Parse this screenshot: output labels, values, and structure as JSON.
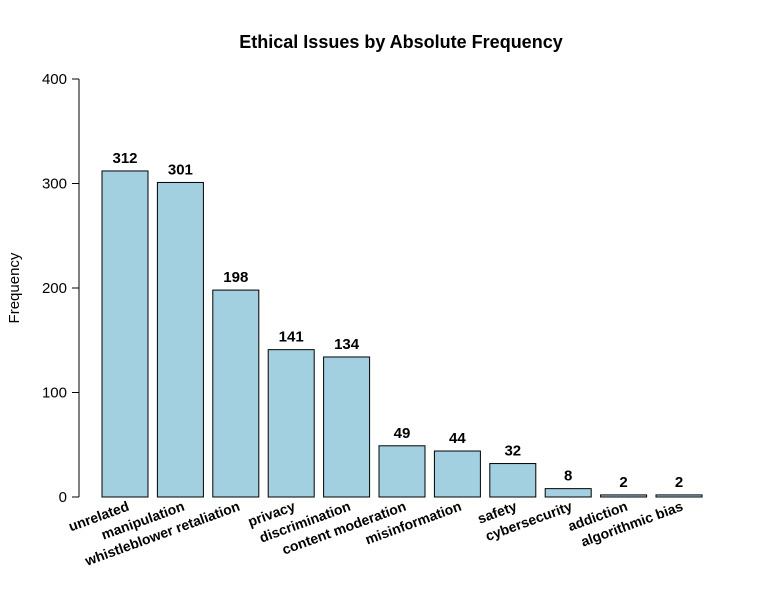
{
  "chart_data": {
    "type": "bar",
    "title": "Ethical Issues by Absolute Frequency",
    "xlabel": "",
    "ylabel": "Frequency",
    "ylim": [
      0,
      400
    ],
    "yticks": [
      0,
      100,
      200,
      300,
      400
    ],
    "grid": false,
    "bar_color": "#a3d0e1",
    "categories": [
      "unrelated",
      "manipulation",
      "whistleblower retaliation",
      "privacy",
      "discrimination",
      "content moderation",
      "misinformation",
      "safety",
      "cybersecurity",
      "addiction",
      "algorithmic bias"
    ],
    "values": [
      312,
      301,
      198,
      141,
      134,
      49,
      44,
      32,
      8,
      2,
      2
    ]
  }
}
